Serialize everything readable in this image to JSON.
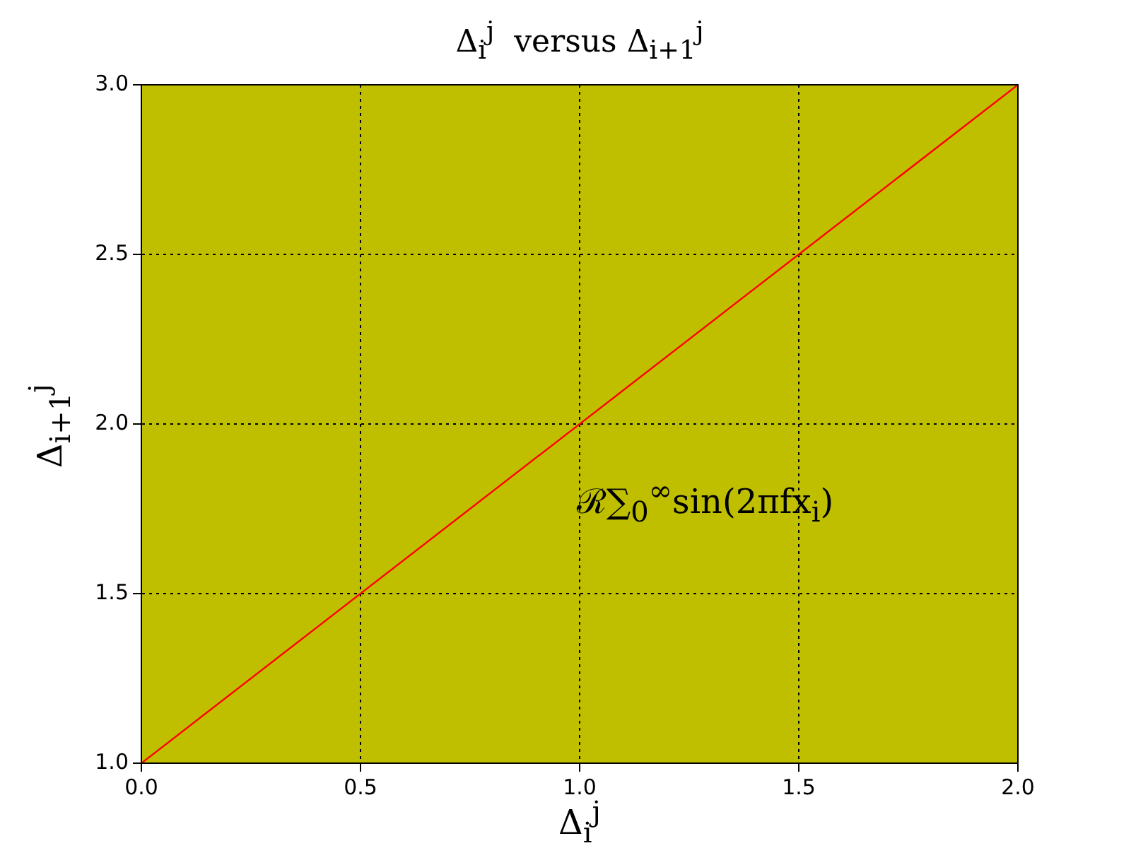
{
  "chart_data": {
    "type": "line",
    "title": "Δ$_{i}$$^{j}$  versus Δ$_{i+1}$$^{j}$",
    "xlabel": "Δ$_{i}$$^{j}$",
    "ylabel": "Δ$_{i+1}$$^{j}$",
    "annotations": [
      "ℛ∑$_{0}$$^{∞}$sin(2πfx$_{i}$)"
    ],
    "x": [
      0,
      2
    ],
    "series": [
      {
        "color": "#ff0000",
        "values": [
          1,
          3
        ]
      }
    ],
    "xlim": [
      0,
      2
    ],
    "ylim": [
      1,
      3
    ],
    "xticks": [
      {
        "value": 0,
        "label": "0.0"
      },
      {
        "value": 0.5,
        "label": "0.5"
      },
      {
        "value": 1,
        "label": "1.0"
      },
      {
        "value": 1.5,
        "label": "1.5"
      },
      {
        "value": 2,
        "label": "2.0"
      }
    ],
    "yticks": [
      {
        "value": 1,
        "label": "1.0"
      },
      {
        "value": 1.5,
        "label": "1.5"
      },
      {
        "value": 2,
        "label": "2.0"
      },
      {
        "value": 2.5,
        "label": "2.5"
      },
      {
        "value": 3,
        "label": "3.0"
      }
    ],
    "grid": true,
    "legend": false,
    "marker": "none",
    "line_style": "solid"
  }
}
